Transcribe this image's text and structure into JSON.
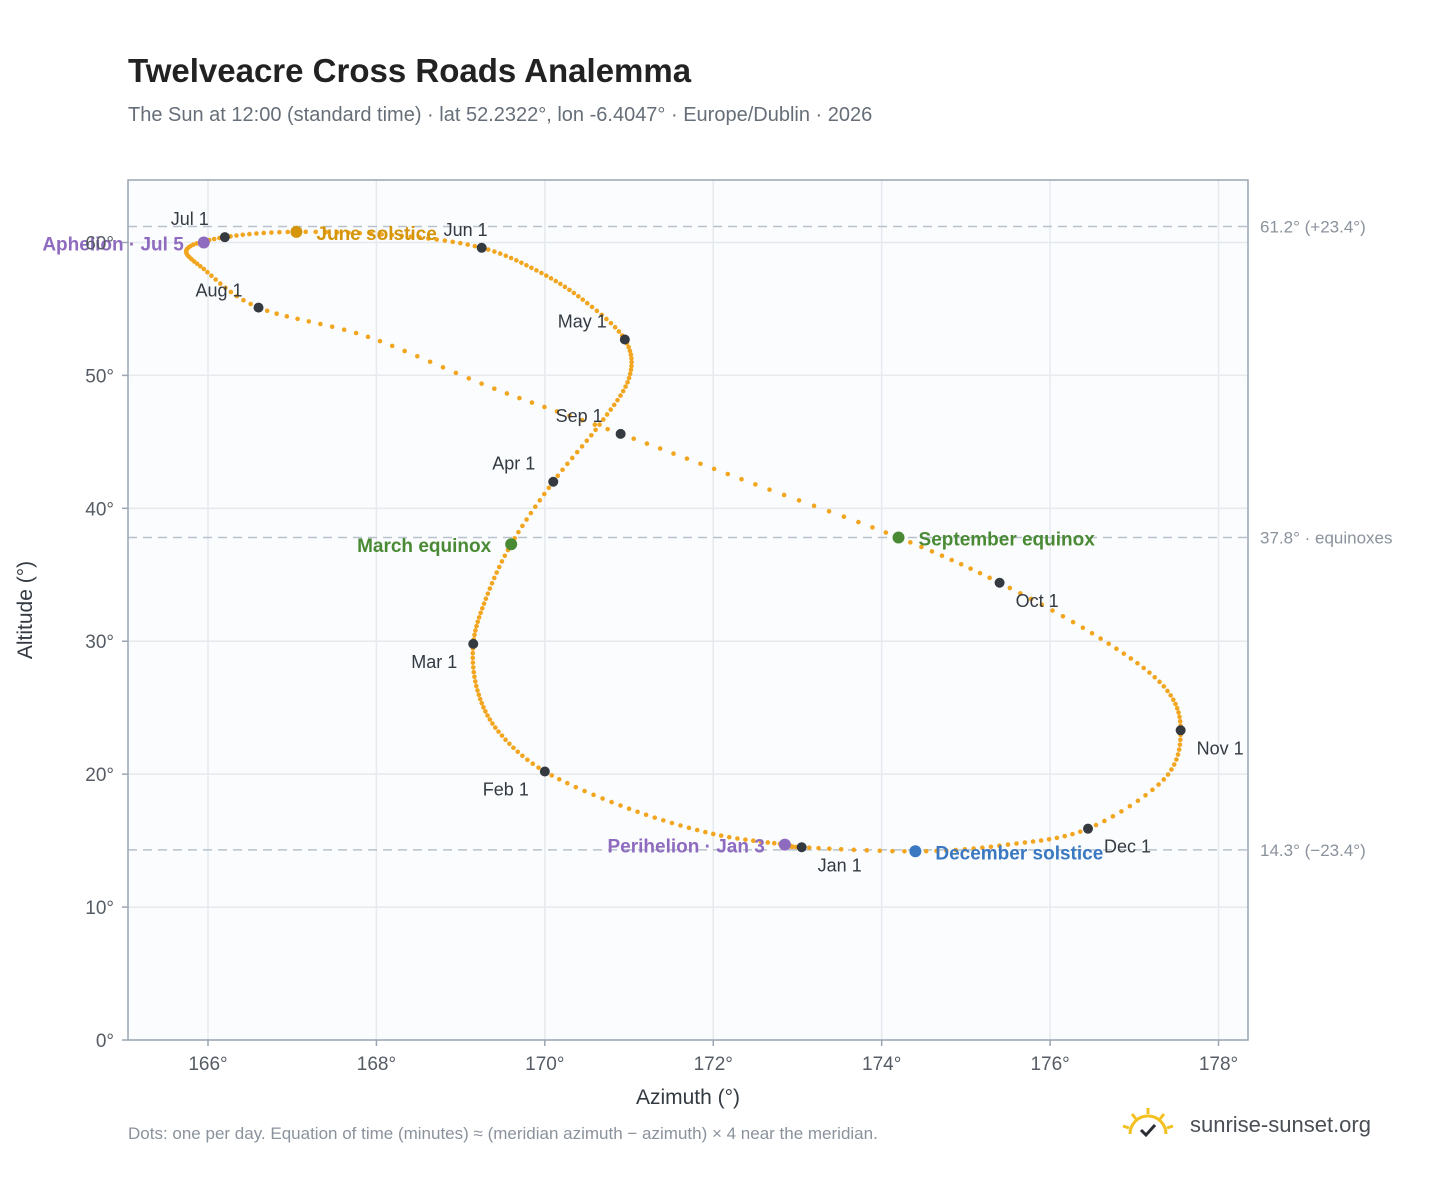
{
  "title": "Twelveacre Cross Roads Analemma",
  "subtitle": "The Sun at 12:00 (standard time) · lat 52.2322°, lon -6.4047° · Europe/Dublin · 2026",
  "footnote": "Dots: one per day. Equation of time (minutes) ≈ (meridian azimuth − azimuth) × 4 near the meridian.",
  "brand": "sunrise-sunset.org",
  "colors": {
    "path": "#f2a51f",
    "month_marker": "#343a40",
    "aphelion": "#8e6bbf",
    "perihelion": "#8e6bbf",
    "solstice_june": "#d4950a",
    "solstice_december": "#3a78c2",
    "equinox": "#4a8a34",
    "reference_line": "#b8c2cc",
    "plot_bg": "#fafcfe",
    "grid": "#e6eaee",
    "frame": "#9aa5b1"
  },
  "chart_data": {
    "type": "scatter",
    "xlabel": "Azimuth (°)",
    "ylabel": "Altitude (°)",
    "xlim": [
      165.05,
      178.35
    ],
    "ylim": [
      0,
      64.7
    ],
    "x_ticks": [
      166,
      168,
      170,
      172,
      174,
      176,
      178
    ],
    "x_tick_labels": [
      "166°",
      "168°",
      "170°",
      "172°",
      "174°",
      "176°",
      "178°"
    ],
    "y_ticks": [
      0,
      10,
      20,
      30,
      40,
      50,
      60
    ],
    "y_tick_labels": [
      "0°",
      "10°",
      "20°",
      "30°",
      "40°",
      "50°",
      "60°"
    ],
    "grid": true,
    "reference_lines": [
      {
        "y": 61.2,
        "label": "61.2° (+23.4°)"
      },
      {
        "y": 37.8,
        "label": "37.8° · equinoxes"
      },
      {
        "y": 14.3,
        "label": "14.3° (−23.4°)"
      }
    ],
    "month_markers": [
      {
        "label": "Jan 1",
        "az": 173.05,
        "alt": 14.5
      },
      {
        "label": "Feb 1",
        "az": 170.0,
        "alt": 20.2
      },
      {
        "label": "Mar 1",
        "az": 169.15,
        "alt": 29.8
      },
      {
        "label": "Apr 1",
        "az": 170.1,
        "alt": 42.0
      },
      {
        "label": "May 1",
        "az": 170.95,
        "alt": 52.7
      },
      {
        "label": "Jun 1",
        "az": 169.25,
        "alt": 59.6
      },
      {
        "label": "Jul 1",
        "az": 166.2,
        "alt": 60.4
      },
      {
        "label": "Aug 1",
        "az": 166.6,
        "alt": 55.1
      },
      {
        "label": "Sep 1",
        "az": 170.9,
        "alt": 45.6
      },
      {
        "label": "Oct 1",
        "az": 175.4,
        "alt": 34.4
      },
      {
        "label": "Nov 1",
        "az": 177.55,
        "alt": 23.3
      },
      {
        "label": "Dec 1",
        "az": 176.45,
        "alt": 15.9
      }
    ],
    "events": [
      {
        "label": "Aphelion · Jul 5",
        "az": 165.95,
        "alt": 60.0,
        "kind": "aphelion"
      },
      {
        "label": "June solstice",
        "az": 167.05,
        "alt": 60.8,
        "kind": "solstice_june"
      },
      {
        "label": "March equinox",
        "az": 169.6,
        "alt": 37.3,
        "kind": "equinox"
      },
      {
        "label": "September equinox",
        "az": 174.2,
        "alt": 37.8,
        "kind": "equinox"
      },
      {
        "label": "Perihelion · Jan 3",
        "az": 172.85,
        "alt": 14.7,
        "kind": "perihelion"
      },
      {
        "label": "December solstice",
        "az": 174.4,
        "alt": 14.2,
        "kind": "solstice_december"
      }
    ],
    "path_knots": [
      [
        173.05,
        14.5
      ],
      [
        172.85,
        14.7
      ],
      [
        172.0,
        15.5
      ],
      [
        171.0,
        17.4
      ],
      [
        170.0,
        20.2
      ],
      [
        169.45,
        23.2
      ],
      [
        169.2,
        26.3
      ],
      [
        169.15,
        29.8
      ],
      [
        169.3,
        33.2
      ],
      [
        169.6,
        37.3
      ],
      [
        170.1,
        42.0
      ],
      [
        170.65,
        46.3
      ],
      [
        171.0,
        49.8
      ],
      [
        170.95,
        52.7
      ],
      [
        170.45,
        55.7
      ],
      [
        169.9,
        57.9
      ],
      [
        169.25,
        59.6
      ],
      [
        168.3,
        60.5
      ],
      [
        167.05,
        60.8
      ],
      [
        166.2,
        60.4
      ],
      [
        165.75,
        59.5
      ],
      [
        165.95,
        58.0
      ],
      [
        166.6,
        55.1
      ],
      [
        167.9,
        52.9
      ],
      [
        169.4,
        49.0
      ],
      [
        170.9,
        45.6
      ],
      [
        172.5,
        41.8
      ],
      [
        174.2,
        37.8
      ],
      [
        175.4,
        34.4
      ],
      [
        176.6,
        30.2
      ],
      [
        177.35,
        26.6
      ],
      [
        177.55,
        23.3
      ],
      [
        177.35,
        19.6
      ],
      [
        176.45,
        15.9
      ],
      [
        175.5,
        14.7
      ],
      [
        174.4,
        14.2
      ],
      [
        173.05,
        14.5
      ]
    ]
  }
}
